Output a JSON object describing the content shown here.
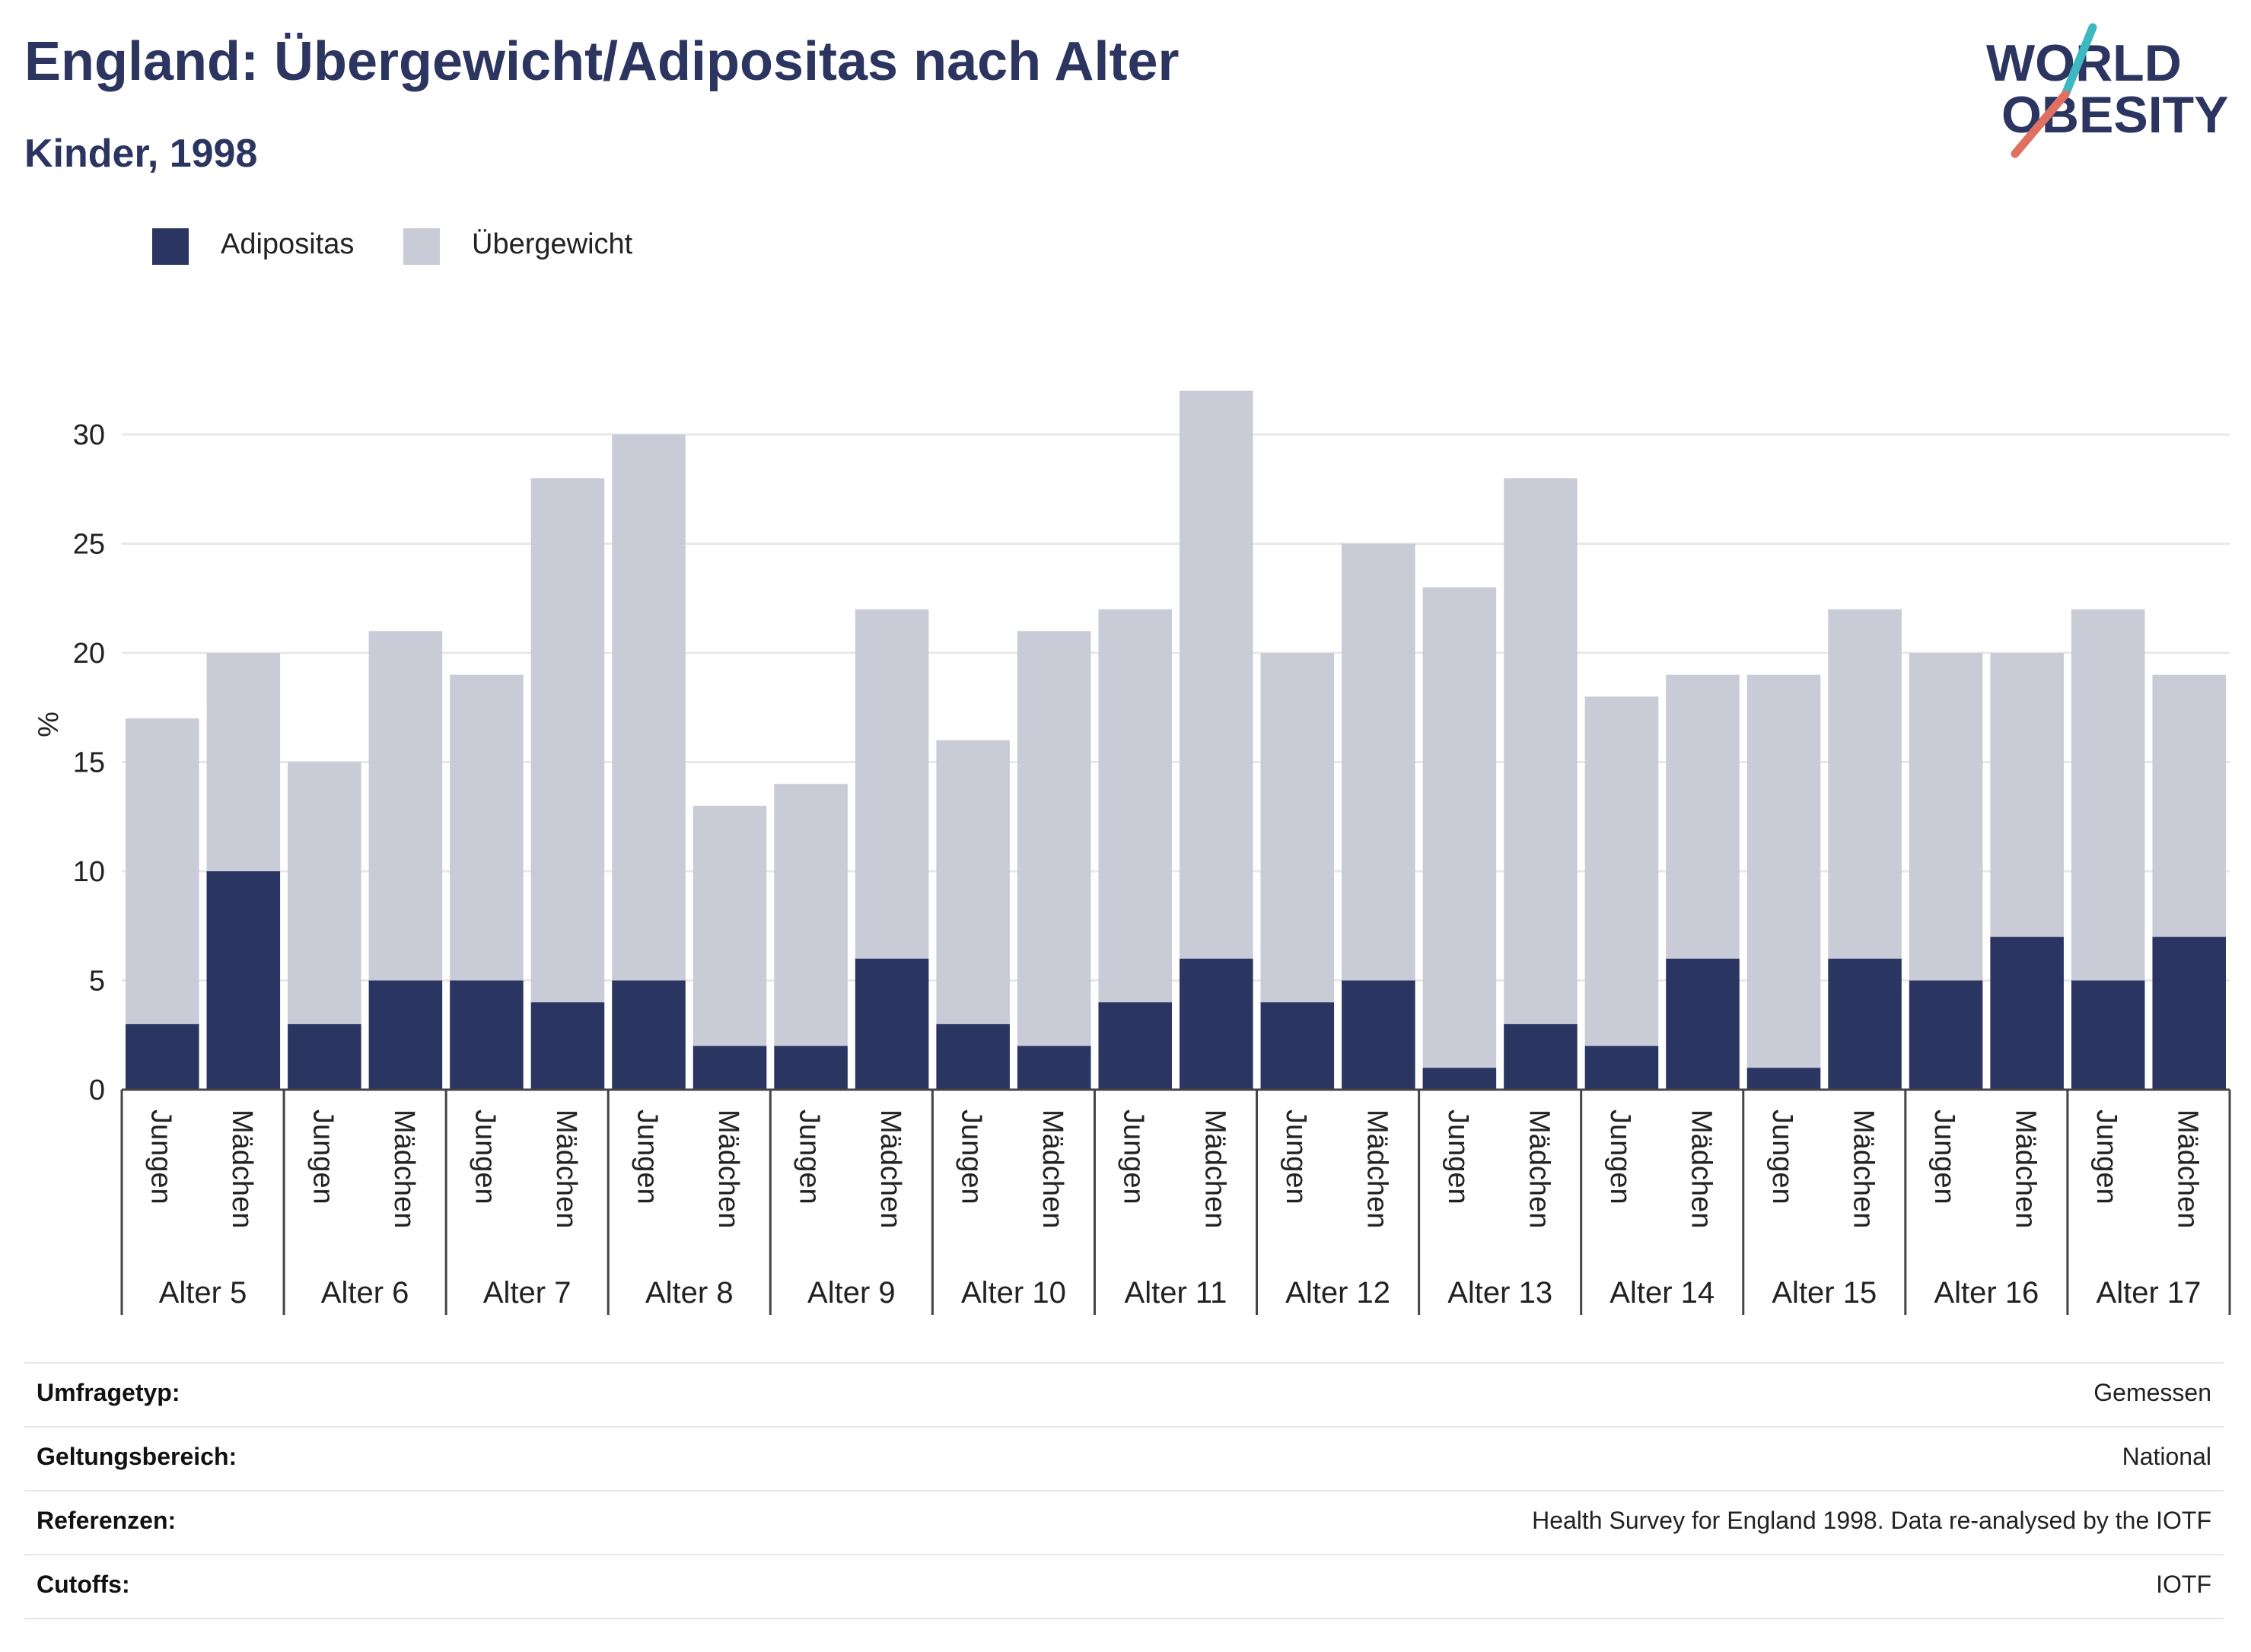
{
  "header": {
    "title": "England: Übergewicht/Adipositas nach Alter",
    "subtitle": "Kinder, 1998"
  },
  "logo": {
    "line1": "WORLD",
    "line2": "OBESITY"
  },
  "colors": {
    "obesity": "#2b3562",
    "overweight": "#c9cbd7",
    "title": "#2b3560",
    "logo_teal": "#3db8c1",
    "logo_coral": "#e07162",
    "grid": "#e8e8e8"
  },
  "legend": [
    {
      "label": "Adipositas",
      "color": "#2b3562"
    },
    {
      "label": "Übergewicht",
      "color": "#c9cbd7"
    }
  ],
  "chart_data": {
    "type": "bar",
    "stacked": true,
    "title": "England: Übergewicht/Adipositas nach Alter",
    "subtitle": "Kinder, 1998",
    "ylabel": "%",
    "ylim": [
      0,
      32
    ],
    "yticks": [
      0,
      5,
      10,
      15,
      20,
      25,
      30
    ],
    "grid": true,
    "legend_position": "top-left",
    "groups": [
      "Alter 5",
      "Alter 6",
      "Alter 7",
      "Alter 8",
      "Alter 9",
      "Alter 10",
      "Alter 11",
      "Alter 12",
      "Alter 13",
      "Alter 14",
      "Alter 15",
      "Alter 16",
      "Alter 17"
    ],
    "subcategories": [
      "Jungen",
      "Mädchen"
    ],
    "series": [
      {
        "name": "Adipositas",
        "values": [
          3,
          10,
          3,
          5,
          5,
          4,
          5,
          2,
          2,
          6,
          3,
          2,
          4,
          6,
          4,
          5,
          1,
          3,
          2,
          6,
          1,
          6,
          5,
          7,
          5,
          7
        ]
      },
      {
        "name": "Übergewicht",
        "values": [
          14,
          10,
          12,
          16,
          14,
          24,
          25,
          11,
          12,
          16,
          13,
          19,
          18,
          26,
          16,
          20,
          22,
          25,
          16,
          13,
          18,
          16,
          15,
          13,
          17,
          12
        ]
      }
    ]
  },
  "meta": [
    {
      "key": "Umfragetyp:",
      "value": "Gemessen"
    },
    {
      "key": "Geltungsbereich:",
      "value": "National"
    },
    {
      "key": "Referenzen:",
      "value": "Health Survey for England 1998. Data re-analysed by the IOTF"
    },
    {
      "key": "Cutoffs:",
      "value": "IOTF"
    }
  ]
}
